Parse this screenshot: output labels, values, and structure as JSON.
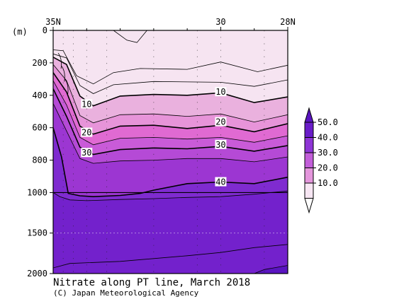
{
  "chart_data": {
    "type": "heatmap",
    "title": "Nitrate along PT line, March 2018",
    "credit": "(C) Japan Meteorological Agency",
    "y_unit_label": "(m)",
    "x_tick_labels": [
      "35N",
      "30",
      "28N"
    ],
    "x_ticks_lat": [
      35,
      30,
      28
    ],
    "x_range": [
      35,
      28
    ],
    "y_ticks": [
      "0",
      "200",
      "400",
      "600",
      "800",
      "1000",
      "1500",
      "2000"
    ],
    "y_segments": [
      {
        "range": [
          0,
          1000
        ],
        "fraction": 0.667
      },
      {
        "range": [
          1000,
          2000
        ],
        "fraction": 0.333
      }
    ],
    "contour_labels": [
      {
        "text": "10",
        "x": 34.0,
        "depth": 455
      },
      {
        "text": "20",
        "x": 34.0,
        "depth": 630
      },
      {
        "text": "30",
        "x": 34.0,
        "depth": 755
      },
      {
        "text": "10",
        "x": 30.0,
        "depth": 380
      },
      {
        "text": "20",
        "x": 30.0,
        "depth": 565
      },
      {
        "text": "30",
        "x": 30.0,
        "depth": 705
      },
      {
        "text": "40",
        "x": 30.0,
        "depth": 935
      }
    ],
    "contour_levels": [
      10,
      20,
      30,
      40,
      50
    ],
    "legend": {
      "labels": [
        "50.0",
        "40.0",
        "30.0",
        "20.0",
        "10.0"
      ],
      "colors": [
        "#6a1cc9",
        "#8e35d6",
        "#c25ed9",
        "#e496dc",
        "#f7e6f3"
      ]
    },
    "band_colors": {
      "lt10": "#f6e4f1",
      "b10_15": "#eab1de",
      "b15_20": "#e794d9",
      "b20_25": "#e06ad2",
      "b25_30": "#c95bd8",
      "b30_35": "#b54ad6",
      "b35_40": "#9c36d2",
      "b40_45": "#7f2bd0",
      "ge45": "#7321cc",
      "ge50": "#5a14c0"
    }
  }
}
